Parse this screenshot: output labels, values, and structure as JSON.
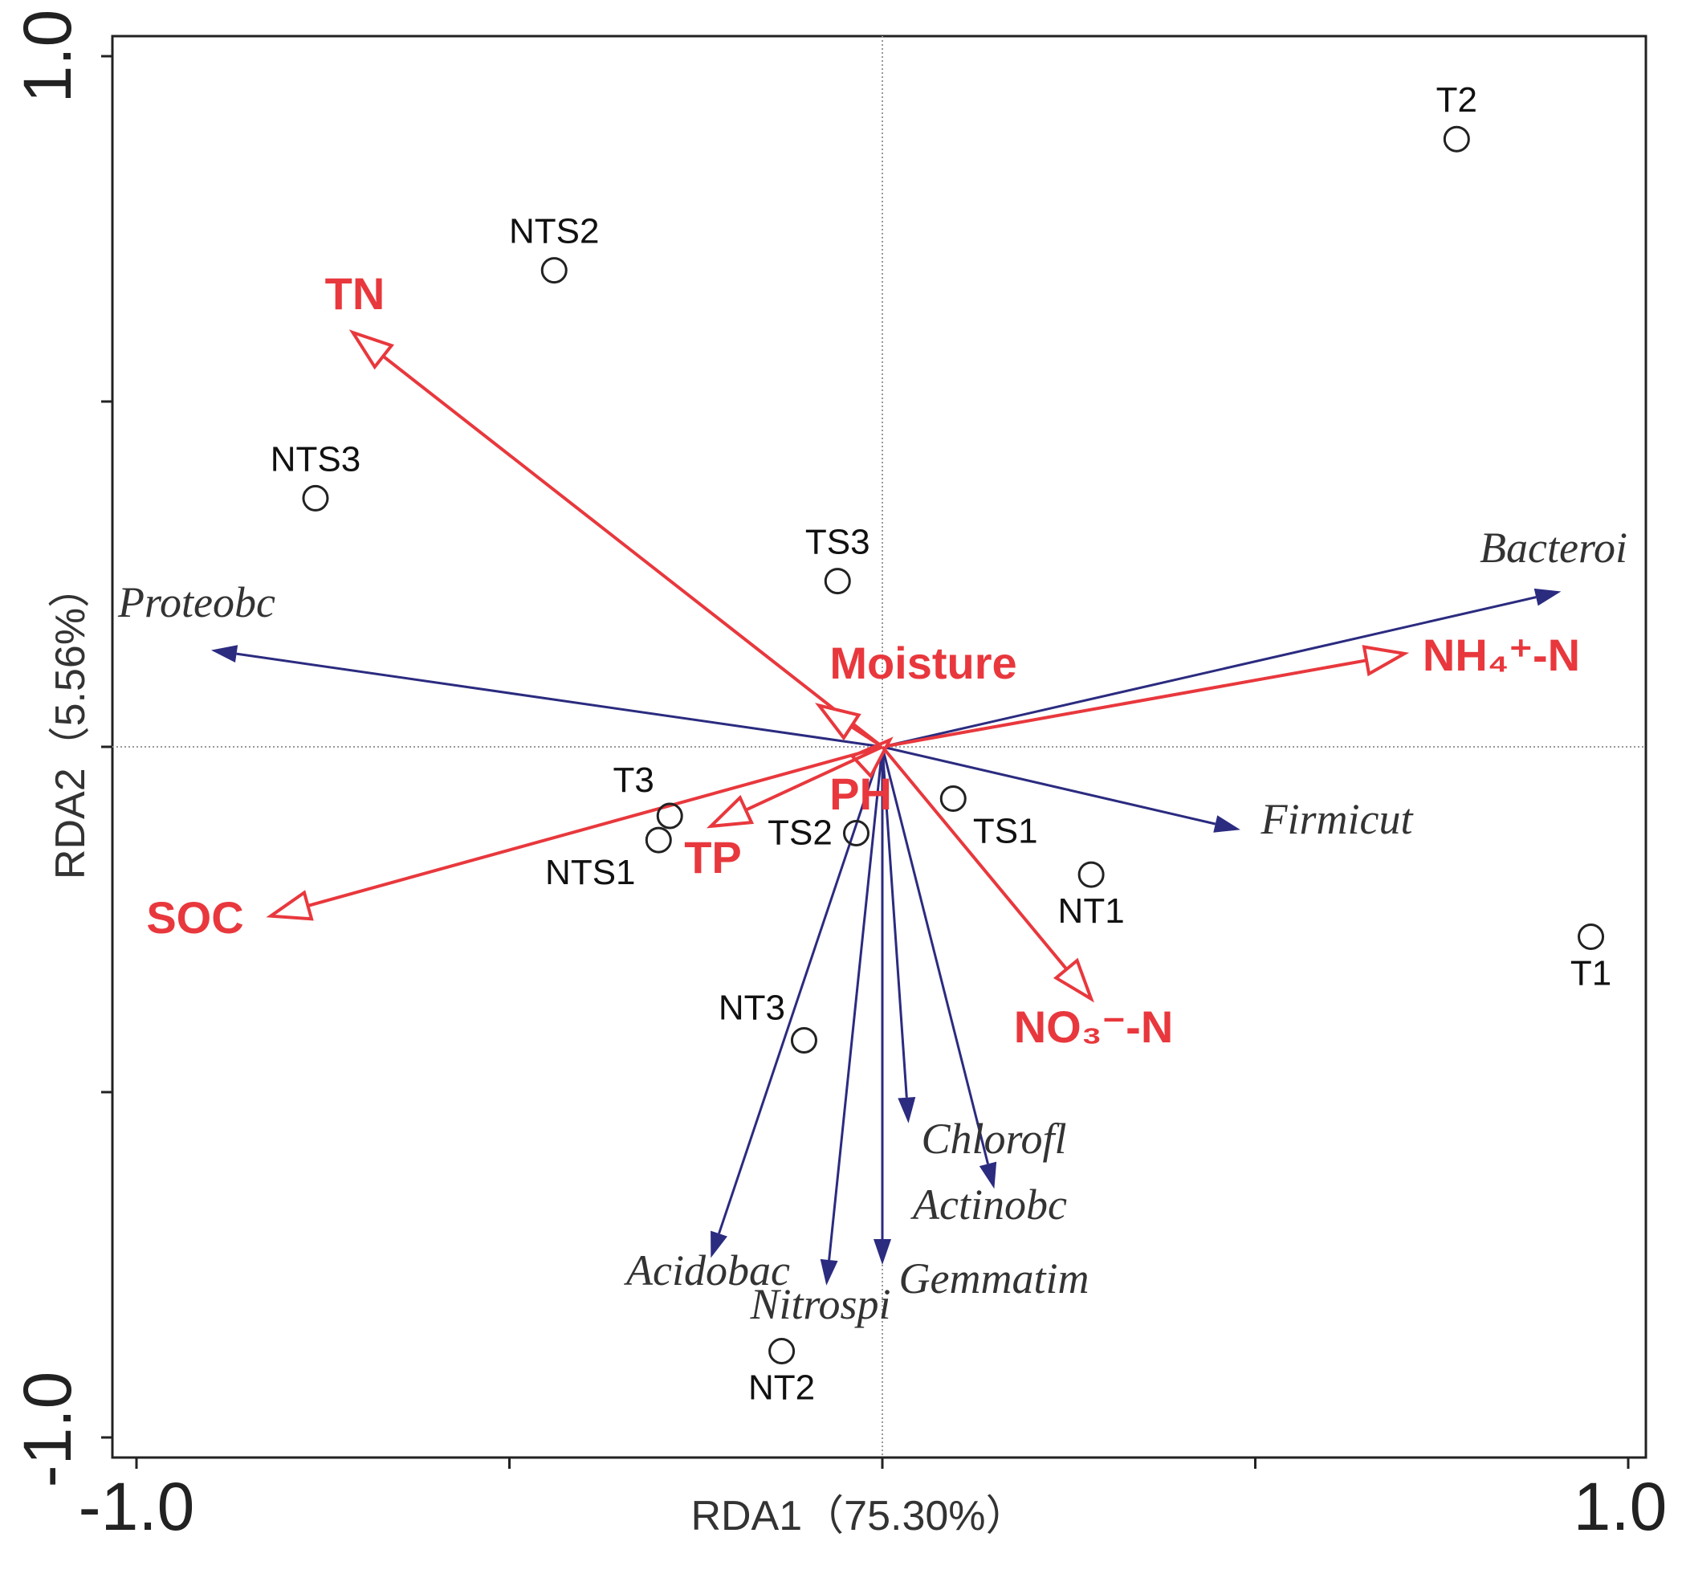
{
  "chart_data": {
    "type": "scatter",
    "subtype": "rda-biplot",
    "xlabel": "RDA1（75.30%）",
    "ylabel": "RDA2（5.56%）",
    "xlim": [
      -1.0,
      1.0
    ],
    "ylim": [
      -1.0,
      1.0
    ],
    "x_tick_labels": [
      "-1.0",
      "1.0"
    ],
    "y_tick_labels": [
      "1.0",
      "-1.0"
    ],
    "origin_lines": true,
    "colors": {
      "env": "#e8383d",
      "species": "#2b2b80",
      "sites": "#222222",
      "frame": "#222222"
    },
    "sites": [
      {
        "name": "T2",
        "x": 0.77,
        "y": 0.88
      },
      {
        "name": "NTS2",
        "x": -0.44,
        "y": 0.69
      },
      {
        "name": "NTS3",
        "x": -0.76,
        "y": 0.36
      },
      {
        "name": "TS3",
        "x": -0.06,
        "y": 0.24
      },
      {
        "name": "T3",
        "x": -0.285,
        "y": -0.1
      },
      {
        "name": "NTS1",
        "x": -0.3,
        "y": -0.135
      },
      {
        "name": "TS2",
        "x": -0.035,
        "y": -0.125
      },
      {
        "name": "TS1",
        "x": 0.095,
        "y": -0.075
      },
      {
        "name": "NT1",
        "x": 0.28,
        "y": -0.185
      },
      {
        "name": "T1",
        "x": 0.95,
        "y": -0.275
      },
      {
        "name": "NT3",
        "x": -0.105,
        "y": -0.425
      },
      {
        "name": "NT2",
        "x": -0.135,
        "y": -0.875
      }
    ],
    "environment": [
      {
        "name": "TN",
        "x": -0.71,
        "y": 0.6
      },
      {
        "name": "Moisture",
        "x": -0.085,
        "y": 0.06
      },
      {
        "name": "NH₄⁺-N",
        "x": 0.7,
        "y": 0.135
      },
      {
        "name": "PH",
        "x": 0.01,
        "y": 0.01
      },
      {
        "name": "TP",
        "x": -0.23,
        "y": -0.115
      },
      {
        "name": "SOC",
        "x": -0.82,
        "y": -0.245
      },
      {
        "name": "NO₃⁻-N",
        "x": 0.28,
        "y": -0.365
      }
    ],
    "species": [
      {
        "name": "Bacteroi",
        "x": 0.91,
        "y": 0.225
      },
      {
        "name": "Proteobc",
        "x": -0.9,
        "y": 0.14
      },
      {
        "name": "Firmicut",
        "x": 0.48,
        "y": -0.12
      },
      {
        "name": "Chlorofl",
        "x": 0.035,
        "y": -0.545
      },
      {
        "name": "Actinobc",
        "x": 0.15,
        "y": -0.64
      },
      {
        "name": "Acidobac",
        "x": -0.23,
        "y": -0.74
      },
      {
        "name": "Nitrospi",
        "x": -0.075,
        "y": -0.78
      },
      {
        "name": "Gemmatim",
        "x": 0.0,
        "y": -0.75
      }
    ]
  }
}
